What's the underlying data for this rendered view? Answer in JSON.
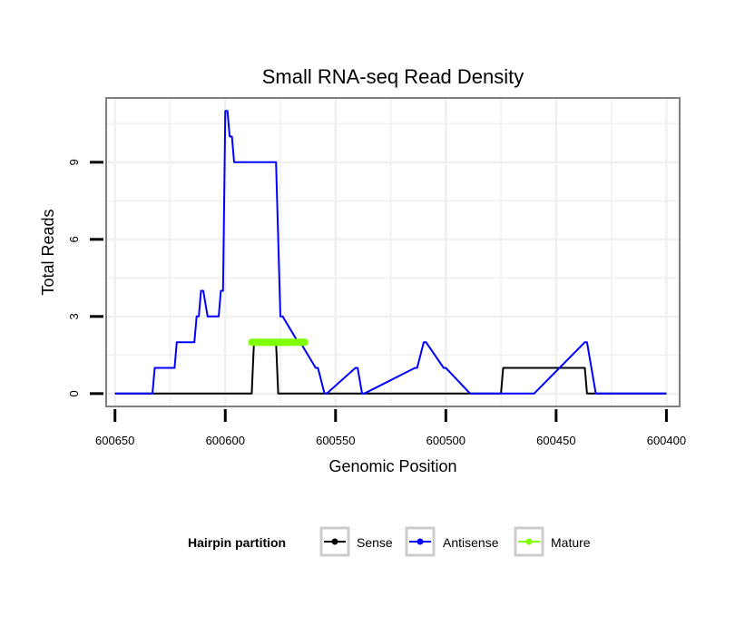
{
  "chart_data": {
    "type": "line",
    "title": "Small RNA-seq Read Density",
    "xlabel": "Genomic Position",
    "ylabel": "Total Reads",
    "x_reversed": true,
    "xlim": [
      600654,
      600394
    ],
    "ylim": [
      -0.5,
      11.5
    ],
    "x_ticks": [
      600650,
      600600,
      600550,
      600500,
      600450,
      600400
    ],
    "x_tick_labels": [
      "600650",
      "600600",
      "600550",
      "600500",
      "600450",
      "600400"
    ],
    "y_ticks": [
      0,
      3,
      6,
      9
    ],
    "y_tick_labels": [
      "0",
      "3",
      "6",
      "9"
    ],
    "grid": true,
    "legend": {
      "title": "Hairpin partition",
      "position": "bottom",
      "entries": [
        "Sense",
        "Antisense",
        "Mature"
      ]
    },
    "series": [
      {
        "name": "Sense",
        "color": "#000000",
        "x": [
          600650,
          600588,
          600587,
          600577,
          600576,
          600527,
          600526,
          600475,
          600474,
          600437,
          600436,
          600400
        ],
        "y": [
          0,
          0,
          2,
          2,
          0,
          0,
          0,
          0,
          1,
          1,
          0,
          0
        ]
      },
      {
        "name": "Antisense",
        "color": "#0000ff",
        "x": [
          600650,
          600633,
          600632,
          600623,
          600622,
          600614,
          600613,
          600612,
          600611,
          600610,
          600608,
          600607,
          600606,
          600603,
          600602,
          600601,
          600600,
          600599,
          600598,
          600597,
          600596,
          600593,
          600592,
          600591,
          600589,
          600588,
          600578,
          600577,
          600575,
          600574,
          600567,
          600566,
          600559,
          600558,
          600555,
          600554,
          600541,
          600540,
          600538,
          600537,
          600514,
          600513,
          600510,
          600509,
          600501,
          600500,
          600489,
          600488,
          600461,
          600460,
          600437,
          600436,
          600432,
          600431,
          600400
        ],
        "y": [
          0,
          0,
          1,
          1,
          2,
          2,
          3,
          3,
          4,
          4,
          3,
          3,
          3,
          3,
          4,
          4,
          11,
          11,
          10,
          10,
          9,
          9,
          9,
          9,
          9,
          9,
          9,
          9,
          3,
          3,
          2,
          2,
          1,
          1,
          0,
          0,
          1,
          1,
          0,
          0,
          1,
          1,
          2,
          2,
          1,
          1,
          0,
          0,
          0,
          0,
          2,
          2,
          0,
          0,
          0
        ]
      },
      {
        "name": "Mature",
        "color": "#7fff00",
        "x": [
          600588,
          600564
        ],
        "y": [
          2,
          2
        ]
      }
    ]
  }
}
